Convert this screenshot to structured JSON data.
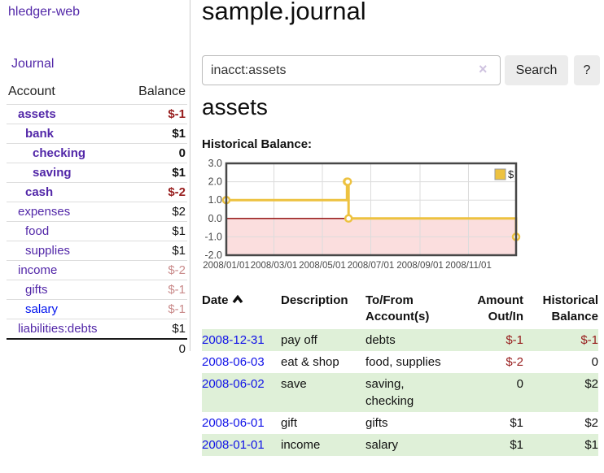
{
  "sidebar": {
    "brand": "hledger-web",
    "journal_link": "Journal",
    "accounts": {
      "header_account": "Account",
      "header_balance": "Balance",
      "rows": [
        {
          "name": "assets",
          "balance": "$-1"
        },
        {
          "name": "bank",
          "balance": "$1"
        },
        {
          "name": "checking",
          "balance": "0"
        },
        {
          "name": "saving",
          "balance": "$1"
        },
        {
          "name": "cash",
          "balance": "$-2"
        },
        {
          "name": "expenses",
          "balance": "$2"
        },
        {
          "name": "food",
          "balance": "$1"
        },
        {
          "name": "supplies",
          "balance": "$1"
        },
        {
          "name": "income",
          "balance": "$-2"
        },
        {
          "name": "gifts",
          "balance": "$-1"
        },
        {
          "name": "salary",
          "balance": "$-1"
        },
        {
          "name": "liabilities:debts",
          "balance": "$1"
        }
      ],
      "total": "0"
    }
  },
  "main": {
    "title": "sample.journal",
    "search": {
      "value": "inacct:assets",
      "clear_icon": "×",
      "button_label": "Search",
      "help_label": "?"
    },
    "account_heading": "assets",
    "chart_label": "Historical Balance:"
  },
  "chart_data": {
    "type": "line",
    "step": true,
    "title": "Historical Balance",
    "series": [
      {
        "name": "$",
        "color": "#edc240",
        "points": [
          [
            "2008-01-01",
            1
          ],
          [
            "2008-06-01",
            2
          ],
          [
            "2008-06-02",
            2
          ],
          [
            "2008-06-03",
            0
          ],
          [
            "2008-12-31",
            -1
          ]
        ]
      }
    ],
    "x_range": [
      "2008-01-01",
      "2008-12-31"
    ],
    "x_ticks": [
      "2008/01/01",
      "2008/03/01",
      "2008/05/01",
      "2008/07/01",
      "2008/09/01",
      "2008/11/01"
    ],
    "y_ticks": [
      3.0,
      2.0,
      1.0,
      0.0,
      -1.0,
      -2.0
    ],
    "ylim": [
      -2,
      3
    ],
    "grid": true,
    "legend": {
      "label": "$",
      "position": "top-right"
    },
    "colors": {
      "series": "#edc240",
      "marker_fill": "#ffffff",
      "negative_fill": "#fbdede",
      "zero_line": "#8b0000",
      "grid": "#dcdcdc",
      "border": "#474747",
      "tick_text": "#4a4a4a"
    }
  },
  "register": {
    "headers": {
      "date": "Date",
      "description": "Description",
      "accounts": "To/From Account(s)",
      "amount": "Amount Out/In",
      "balance": "Historical Balance"
    },
    "rows": [
      {
        "date": "2008-12-31",
        "description": "pay off",
        "accounts": "debts",
        "amount": "$-1",
        "balance": "$-1"
      },
      {
        "date": "2008-06-03",
        "description": "eat & shop",
        "accounts": "food, supplies",
        "amount": "$-2",
        "balance": "0"
      },
      {
        "date": "2008-06-02",
        "description": "save",
        "accounts": "saving, checking",
        "amount": "0",
        "balance": "$2"
      },
      {
        "date": "2008-06-01",
        "description": "gift",
        "accounts": "gifts",
        "amount": "$1",
        "balance": "$2"
      },
      {
        "date": "2008-01-01",
        "description": "income",
        "accounts": "salary",
        "amount": "$1",
        "balance": "$1"
      }
    ]
  }
}
